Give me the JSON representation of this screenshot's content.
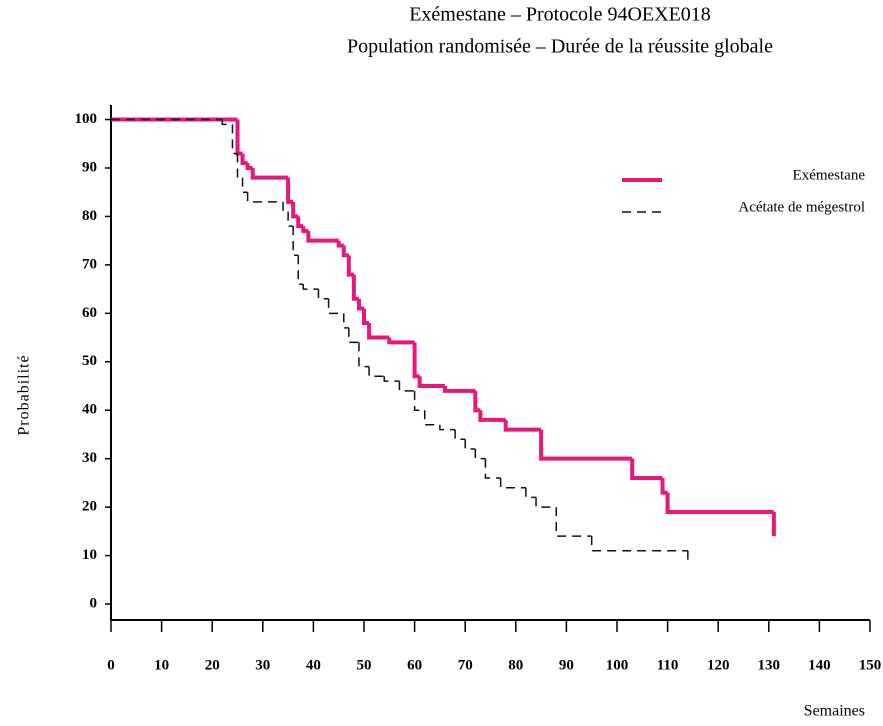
{
  "chart_data": {
    "type": "step",
    "title": "Exémestane – Protocole 94OEXE018",
    "subtitle": "Population randomisée – Durée de la réussite globale",
    "y_label": "Probabilité",
    "x_label": "Semaines",
    "xlim": [
      0,
      150
    ],
    "xticks": [
      0,
      10,
      20,
      30,
      40,
      50,
      60,
      70,
      80,
      90,
      100,
      110,
      120,
      130,
      140,
      150
    ],
    "ylim": [
      -3.3,
      103
    ],
    "yticks": [
      0,
      10,
      20,
      30,
      40,
      50,
      60,
      70,
      80,
      90,
      100
    ],
    "legend": "upper-right",
    "series": [
      {
        "name": "Exémestane",
        "color": "#e8177a",
        "style": "solid",
        "x": [
          0,
          24,
          25,
          26,
          27,
          28,
          35,
          36,
          37,
          38,
          39,
          45,
          46,
          47,
          48,
          49,
          50,
          51,
          55,
          60,
          61,
          66,
          72,
          73,
          78,
          85,
          103,
          109,
          110,
          131
        ],
        "y": [
          100,
          100,
          93,
          91,
          90,
          88,
          83,
          80,
          78,
          77,
          75,
          74,
          72,
          68,
          63,
          61,
          58,
          55,
          54,
          47,
          45,
          44,
          40,
          38,
          36,
          30,
          26,
          23,
          19,
          14
        ]
      },
      {
        "name": "Acétate de mégestrol",
        "color": "#111111",
        "style": "dashed",
        "x": [
          0,
          22,
          24,
          25,
          26,
          27,
          34,
          35,
          36,
          37,
          38,
          41,
          43,
          46,
          47,
          49,
          51,
          54,
          57,
          60,
          62,
          65,
          68,
          70,
          72,
          74,
          77,
          82,
          84,
          88,
          95,
          114
        ],
        "y": [
          100,
          99,
          93,
          88,
          85,
          83,
          81,
          78,
          72,
          66,
          65,
          63,
          60,
          57,
          54,
          49,
          47,
          46,
          44,
          40,
          37,
          36,
          34,
          32,
          30,
          26,
          24,
          22,
          20,
          14,
          11,
          9
        ]
      }
    ]
  }
}
